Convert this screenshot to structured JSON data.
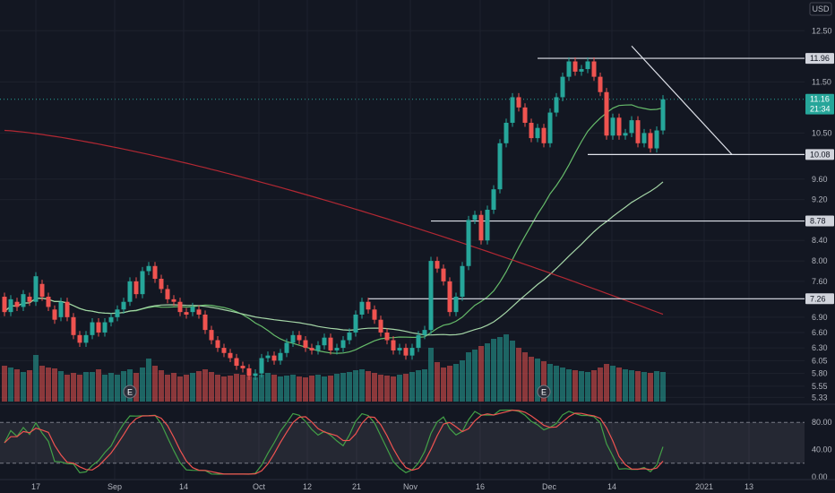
{
  "chart_data": {
    "type": "candlestick",
    "currency_label": "USD",
    "price_axis": {
      "ticks": [
        "12.50",
        "11.50",
        "10.50",
        "9.60",
        "9.20",
        "8.40",
        "8.00",
        "7.60",
        "6.90",
        "6.60",
        "6.30",
        "6.05",
        "5.80",
        "5.55",
        "5.33"
      ],
      "ylim": [
        5.25,
        12.75
      ]
    },
    "time_axis": {
      "labels": [
        "17",
        "Sep",
        "14",
        "Oct",
        "12",
        "21",
        "Nov",
        "16",
        "Dec",
        "14",
        "2021",
        "13"
      ]
    },
    "price_badges": [
      {
        "label": "11.96",
        "value": 11.96,
        "color": "#d1d4dc"
      },
      {
        "label": "11.16",
        "value": 11.16,
        "color": "#26a69a"
      },
      {
        "label": "21:34",
        "value": 10.97,
        "color": "#26a69a"
      },
      {
        "label": "10.08",
        "value": 10.08,
        "color": "#d1d4dc"
      },
      {
        "label": "8.78",
        "value": 8.78,
        "color": "#d1d4dc"
      },
      {
        "label": "7.26",
        "value": 7.26,
        "color": "#d1d4dc"
      }
    ],
    "last_price": 11.16,
    "horizontal_levels": [
      {
        "value": 11.96,
        "x_start_index": 85
      },
      {
        "value": 10.08,
        "x_start_index": 93
      },
      {
        "value": 8.78,
        "x_start_index": 68
      },
      {
        "value": 7.26,
        "x_start_index": 58
      }
    ],
    "trendline": {
      "start": {
        "index": 100,
        "value": 12.2
      },
      "end": {
        "index": 116,
        "value": 10.08
      }
    },
    "earnings_markers": [
      {
        "label": "E",
        "index": 20
      },
      {
        "label": "E",
        "index": 86
      }
    ],
    "candles": [
      [
        7.3,
        7.0
      ],
      [
        7.0,
        7.25
      ],
      [
        7.2,
        7.1
      ],
      [
        7.1,
        7.35
      ],
      [
        7.3,
        7.2
      ],
      [
        7.2,
        7.7
      ],
      [
        7.55,
        7.3
      ],
      [
        7.3,
        7.1
      ],
      [
        7.05,
        6.85
      ],
      [
        6.9,
        7.2
      ],
      [
        7.2,
        6.9
      ],
      [
        6.9,
        6.55
      ],
      [
        6.55,
        6.4
      ],
      [
        6.4,
        6.55
      ],
      [
        6.55,
        6.8
      ],
      [
        6.8,
        6.6
      ],
      [
        6.6,
        6.8
      ],
      [
        6.8,
        6.9
      ],
      [
        6.9,
        7.05
      ],
      [
        7.05,
        7.2
      ],
      [
        7.2,
        7.6
      ],
      [
        7.6,
        7.35
      ],
      [
        7.35,
        7.8
      ],
      [
        7.8,
        7.9
      ],
      [
        7.9,
        7.65
      ],
      [
        7.65,
        7.45
      ],
      [
        7.45,
        7.25
      ],
      [
        7.25,
        7.2
      ],
      [
        7.2,
        7.0
      ],
      [
        7.0,
        6.95
      ],
      [
        7.0,
        7.1
      ],
      [
        7.05,
        6.95
      ],
      [
        6.95,
        6.65
      ],
      [
        6.65,
        6.45
      ],
      [
        6.45,
        6.3
      ],
      [
        6.3,
        6.2
      ],
      [
        6.2,
        6.1
      ],
      [
        6.1,
        5.95
      ],
      [
        5.95,
        5.9
      ],
      [
        5.9,
        5.75
      ],
      [
        5.75,
        5.8
      ],
      [
        5.8,
        6.1
      ],
      [
        6.1,
        6.15
      ],
      [
        6.15,
        6.05
      ],
      [
        6.05,
        6.2
      ],
      [
        6.2,
        6.4
      ],
      [
        6.4,
        6.55
      ],
      [
        6.55,
        6.45
      ],
      [
        6.45,
        6.3
      ],
      [
        6.3,
        6.25
      ],
      [
        6.25,
        6.35
      ],
      [
        6.35,
        6.5
      ],
      [
        6.5,
        6.25
      ],
      [
        6.25,
        6.3
      ],
      [
        6.3,
        6.45
      ],
      [
        6.45,
        6.6
      ],
      [
        6.6,
        6.95
      ],
      [
        6.95,
        7.2
      ],
      [
        7.2,
        7.05
      ],
      [
        7.05,
        6.85
      ],
      [
        6.85,
        6.6
      ],
      [
        6.6,
        6.45
      ],
      [
        6.45,
        6.25
      ],
      [
        6.25,
        6.3
      ],
      [
        6.3,
        6.15
      ],
      [
        6.15,
        6.3
      ],
      [
        6.3,
        6.55
      ],
      [
        6.55,
        6.65
      ],
      [
        6.65,
        8.0
      ],
      [
        8.0,
        7.85
      ],
      [
        7.85,
        7.6
      ],
      [
        7.6,
        7.0
      ],
      [
        7.0,
        7.3
      ],
      [
        7.3,
        7.9
      ],
      [
        7.9,
        8.8
      ],
      [
        8.8,
        8.9
      ],
      [
        8.9,
        8.4
      ],
      [
        8.4,
        9.0
      ],
      [
        9.0,
        9.4
      ],
      [
        9.4,
        10.3
      ],
      [
        10.3,
        10.7
      ],
      [
        10.7,
        11.2
      ],
      [
        11.2,
        11.0
      ],
      [
        11.0,
        10.7
      ],
      [
        10.7,
        10.4
      ],
      [
        10.4,
        10.6
      ],
      [
        10.6,
        10.3
      ],
      [
        10.3,
        10.9
      ],
      [
        10.9,
        11.2
      ],
      [
        11.2,
        11.6
      ],
      [
        11.6,
        11.9
      ],
      [
        11.9,
        11.7
      ],
      [
        11.7,
        11.75
      ],
      [
        11.75,
        11.9
      ],
      [
        11.9,
        11.6
      ],
      [
        11.6,
        11.3
      ],
      [
        11.3,
        10.45
      ],
      [
        10.45,
        10.8
      ],
      [
        10.8,
        10.45
      ],
      [
        10.45,
        10.5
      ],
      [
        10.5,
        10.75
      ],
      [
        10.75,
        10.3
      ],
      [
        10.3,
        10.5
      ],
      [
        10.5,
        10.2
      ],
      [
        10.2,
        10.55
      ],
      [
        10.55,
        11.16
      ]
    ],
    "volume_scale_max": 100,
    "volumes": [
      40,
      38,
      36,
      33,
      35,
      52,
      40,
      38,
      37,
      34,
      30,
      32,
      30,
      33,
      33,
      36,
      30,
      32,
      30,
      34,
      36,
      32,
      38,
      48,
      40,
      35,
      30,
      32,
      28,
      30,
      32,
      34,
      36,
      33,
      30,
      28,
      29,
      31,
      30,
      28,
      27,
      30,
      32,
      30,
      28,
      29,
      30,
      28,
      27,
      29,
      30,
      28,
      29,
      31,
      32,
      33,
      35,
      36,
      34,
      32,
      30,
      29,
      28,
      30,
      31,
      33,
      35,
      36,
      60,
      44,
      38,
      40,
      42,
      46,
      55,
      58,
      62,
      65,
      70,
      72,
      75,
      68,
      60,
      55,
      50,
      48,
      45,
      42,
      40,
      38,
      36,
      35,
      34,
      33,
      35,
      38,
      42,
      40,
      38,
      36,
      35,
      34,
      33,
      32,
      34,
      33
    ]
  }
}
